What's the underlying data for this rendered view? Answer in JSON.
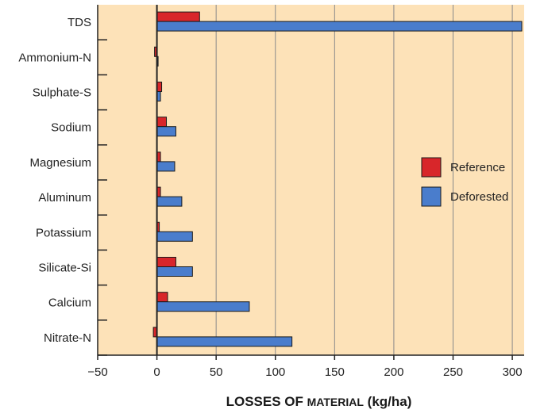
{
  "chart_data": {
    "type": "bar",
    "orientation": "horizontal",
    "categories": [
      "TDS",
      "Ammonium-N",
      "Sulphate-S",
      "Sodium",
      "Magnesium",
      "Aluminum",
      "Potassium",
      "Silicate-Si",
      "Calcium",
      "Nitrate-N"
    ],
    "series": [
      {
        "name": "Reference",
        "color": "#d8262a",
        "values": [
          36,
          -2,
          4,
          8,
          3,
          3,
          2,
          16,
          9,
          -3
        ]
      },
      {
        "name": "Deforested",
        "color": "#4a7dcc",
        "values": [
          308,
          0.5,
          3,
          16,
          15,
          21,
          30,
          30,
          78,
          114
        ]
      }
    ],
    "xlabel": "Losses of Material (kg/ha)",
    "xlim": [
      -50,
      310
    ],
    "xticks": [
      "−50",
      "0",
      "50",
      "100",
      "150",
      "200",
      "250",
      "300"
    ],
    "grid": "vertical",
    "legend": "right",
    "colors": {
      "plot_background": "#fde2b8",
      "grid": "#8a8a8a",
      "axis": "#222222"
    }
  }
}
